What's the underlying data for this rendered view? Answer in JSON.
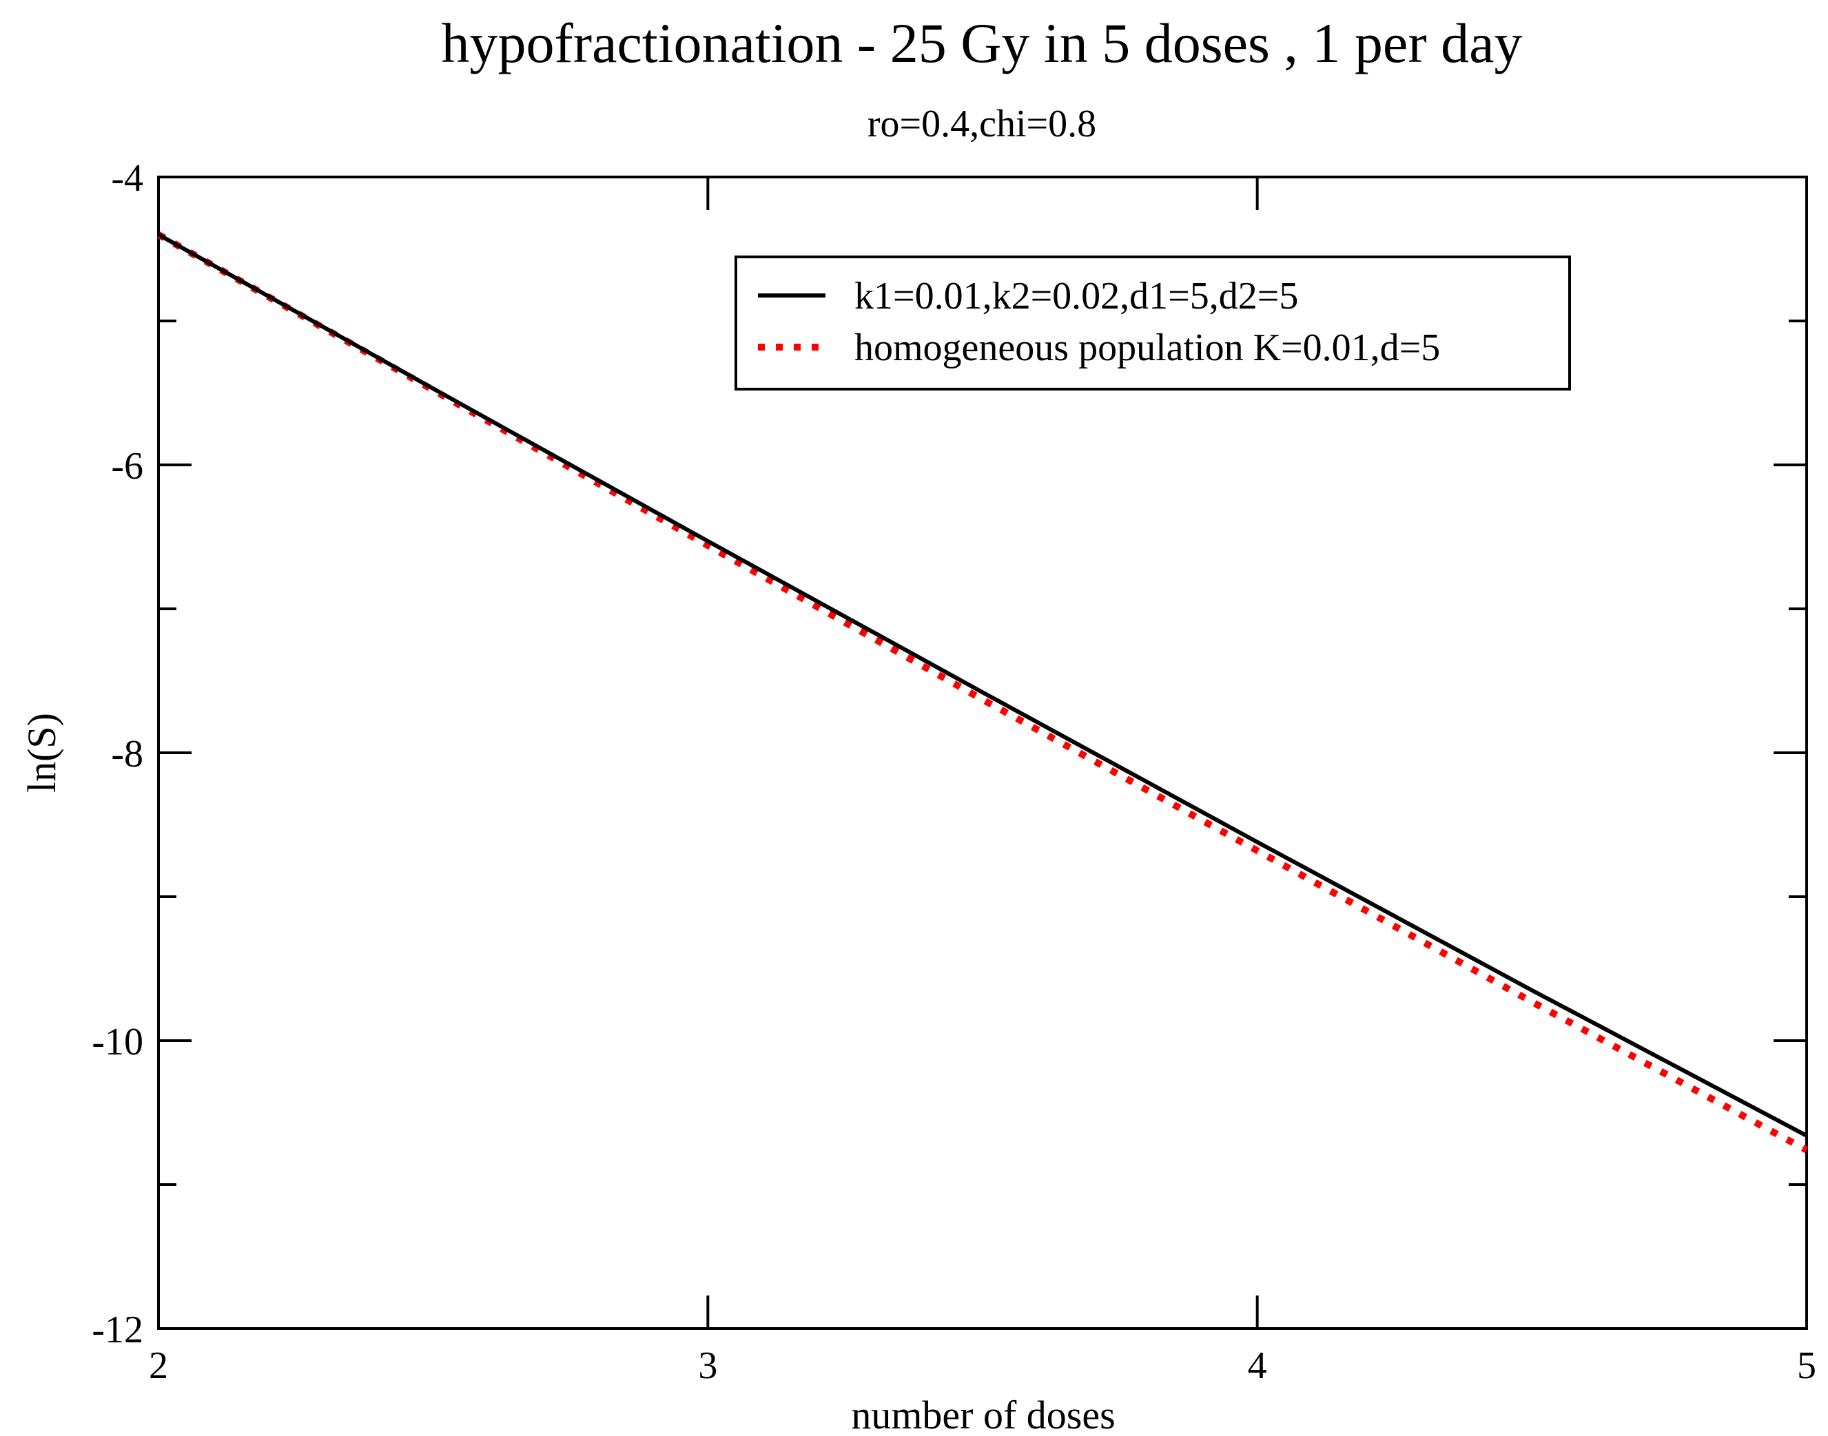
{
  "chart_data": {
    "type": "line",
    "title": "hypofractionation - 25 Gy in 5 doses , 1 per day",
    "subtitle": "ro=0.4,chi=0.8",
    "xlabel": "number of doses",
    "ylabel": "ln(S)",
    "xlim": [
      2,
      5
    ],
    "ylim": [
      -12,
      -4
    ],
    "x_ticks": [
      2,
      3,
      4,
      5
    ],
    "x_tick_labels": [
      "2",
      "3",
      "4",
      "5"
    ],
    "y_ticks": [
      -12,
      -10,
      -8,
      -6,
      -4
    ],
    "y_tick_labels": [
      "-12",
      "-10",
      "-8",
      "-6",
      "-4"
    ],
    "grid": false,
    "legend_position": "top-right",
    "series": [
      {
        "name": "k1=0.01,k2=0.02,d1=5,d2=5",
        "color": "#000000",
        "style": "solid",
        "x": [
          2,
          2.5,
          3,
          3.5,
          4,
          4.5,
          5
        ],
        "y": [
          -4.4,
          -5.47,
          -6.53,
          -7.58,
          -8.62,
          -9.65,
          -10.66
        ]
      },
      {
        "name": "homogeneous population K=0.01,d=5",
        "color": "#ff0000",
        "style": "dotted",
        "x": [
          2,
          2.5,
          3,
          3.5,
          4,
          4.5,
          5
        ],
        "y": [
          -4.4,
          -5.48,
          -6.56,
          -7.63,
          -8.68,
          -9.73,
          -10.76
        ]
      }
    ]
  }
}
